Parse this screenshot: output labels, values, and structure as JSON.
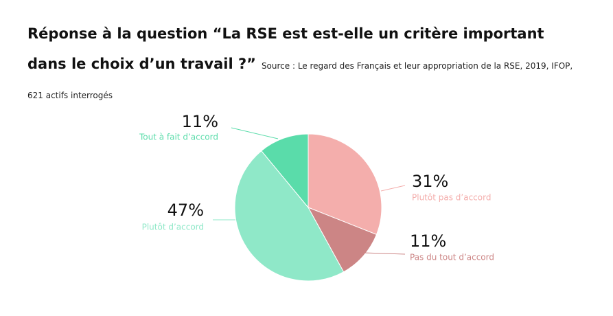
{
  "chart_data": {
    "type": "pie",
    "title": "Réponse à la question “La RSE est est-elle un critère important dans le choix d’un travail ?”",
    "subtitle": "Source : Le regard des Français et leur appropriation de la RSE, 2019, IFOP,  621 actifs interrogés",
    "categories": [
      "Plutôt pas d’accord",
      "Pas du tout d’accord",
      "Plutôt d’accord",
      "Tout à fait d’accord"
    ],
    "values": [
      31,
      11,
      47,
      11
    ],
    "value_labels": [
      "31%",
      "11%",
      "47%",
      "11%"
    ],
    "colors": [
      "#f4aeac",
      "#cc8585",
      "#8fe8c8",
      "#5adcaa"
    ]
  }
}
